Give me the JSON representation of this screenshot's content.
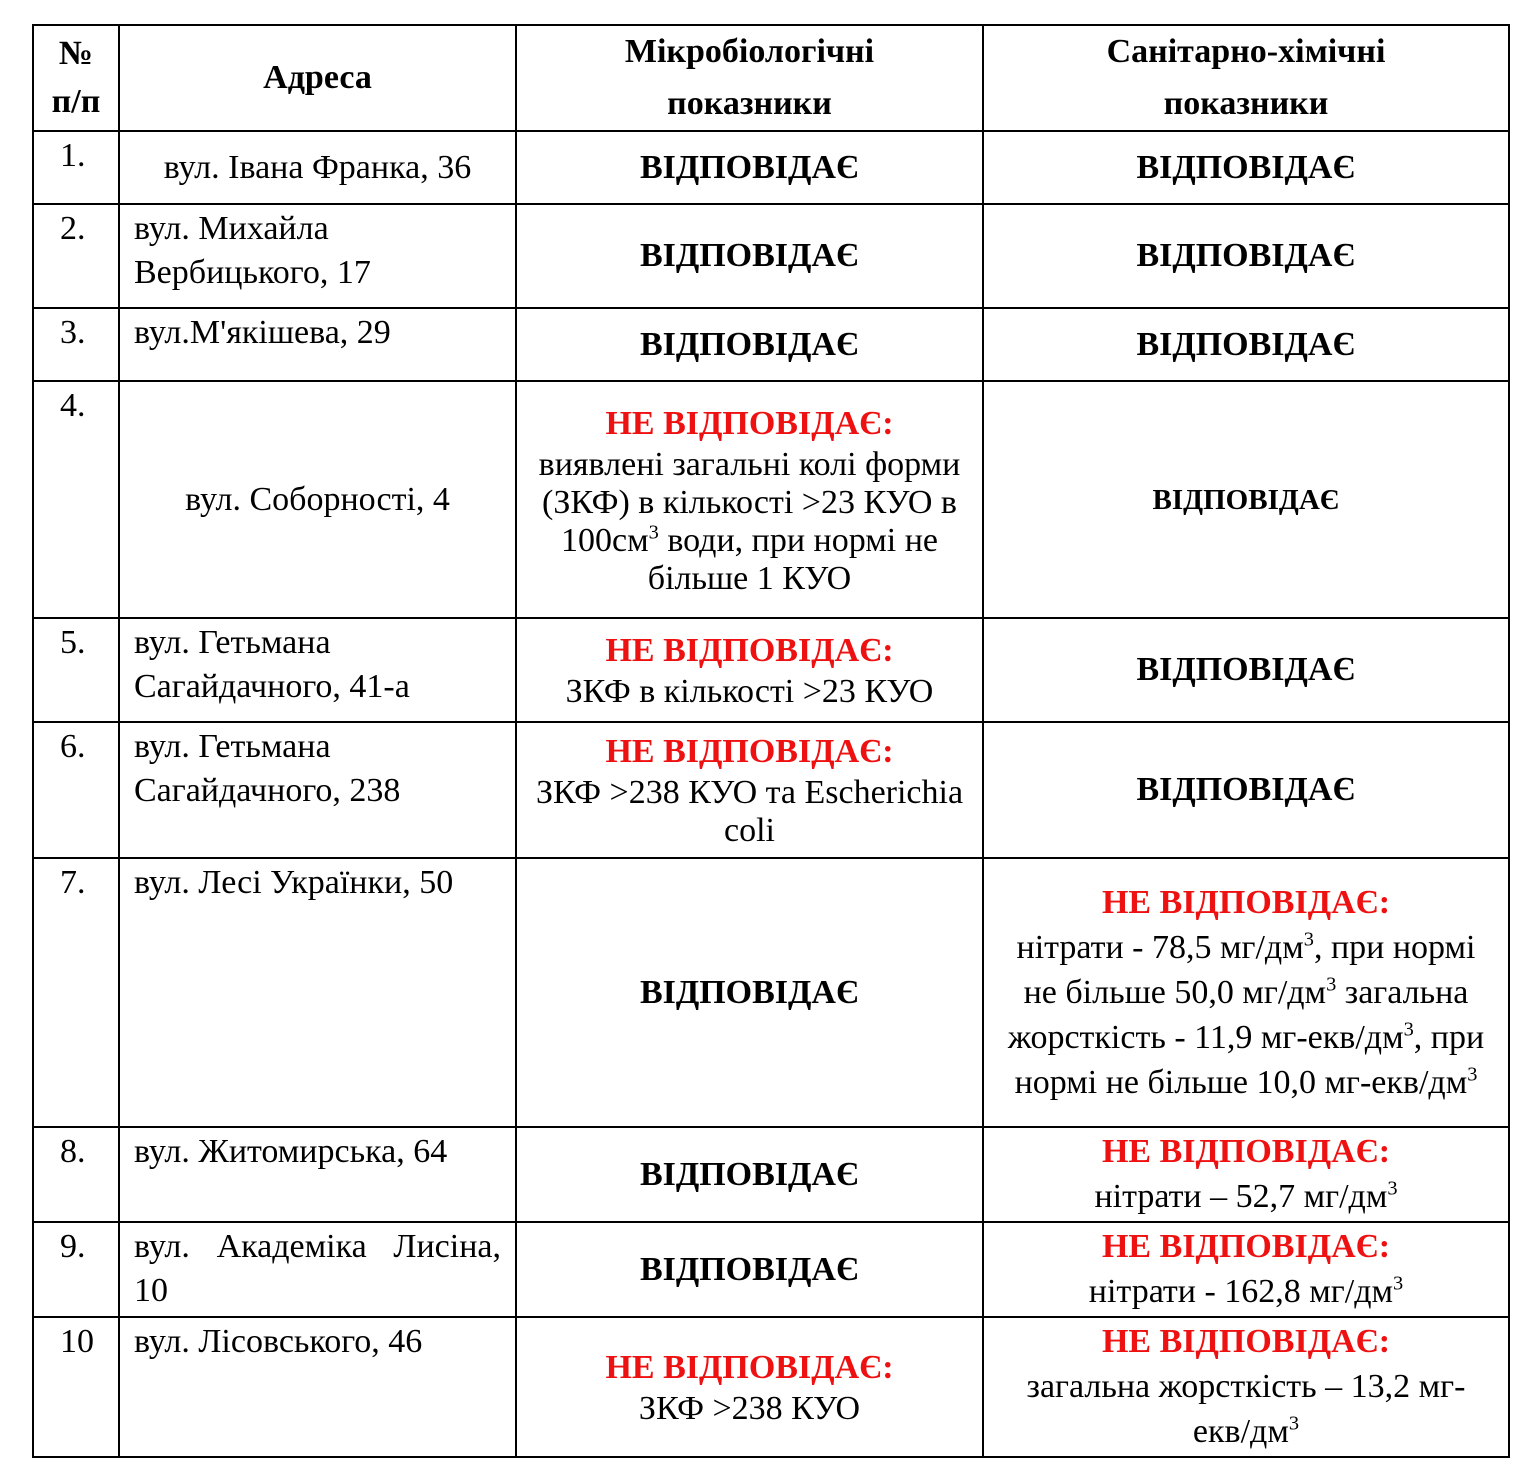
{
  "table": {
    "headers": [
      "№\nп/п",
      "Адреса",
      "Мікробіологічні показники",
      "Санітарно-хімічні показники"
    ],
    "rows": [
      {
        "num": "1.",
        "address": "вул. Івана Франка, 36",
        "micro": {
          "status": "ВІДПОВІДАЄ",
          "ok": true
        },
        "chem": {
          "status": "ВІДПОВІДАЄ",
          "ok": true
        }
      },
      {
        "num": "2.",
        "address": "вул. Михайла Вербицького, 17",
        "micro": {
          "status": "ВІДПОВІДАЄ",
          "ok": true
        },
        "chem": {
          "status": "ВІДПОВІДАЄ",
          "ok": true
        }
      },
      {
        "num": "3.",
        "address": "вул.М'якішева, 29",
        "micro": {
          "status": "ВІДПОВІДАЄ",
          "ok": true
        },
        "chem": {
          "status": "ВІДПОВІДАЄ",
          "ok": true
        }
      },
      {
        "num": "4.",
        "address": "вул. Соборності, 4",
        "micro": {
          "status": "НЕ ВІДПОВІДАЄ:",
          "ok": false,
          "detail": [
            {
              "t": "виявлені загальні колі форми (ЗКФ) в кількості >23 КУО в 100см"
            },
            {
              "sup": "3"
            },
            {
              "t": " води, при нормі не  більше 1 КУО"
            }
          ]
        },
        "chem": {
          "status": "ВІДПОВІДАЄ",
          "ok": true
        }
      },
      {
        "num": "5.",
        "address": "вул. Гетьмана Сагайдачного, 41-а",
        "micro": {
          "status": "НЕ ВІДПОВІДАЄ:",
          "ok": false,
          "detail": [
            {
              "t": "ЗКФ в кількості >23 КУО"
            }
          ]
        },
        "chem": {
          "status": "ВІДПОВІДАЄ",
          "ok": true
        }
      },
      {
        "num": "6.",
        "address": "вул. Гетьмана Сагайдачного, 238",
        "micro": {
          "status": "НЕ ВІДПОВІДАЄ:",
          "ok": false,
          "detail": [
            {
              "t": "ЗКФ >238 КУО та Escherichia coli"
            }
          ]
        },
        "chem": {
          "status": "ВІДПОВІДАЄ",
          "ok": true
        }
      },
      {
        "num": "7.",
        "address": "вул. Лесі Українки, 50",
        "micro": {
          "status": "ВІДПОВІДАЄ",
          "ok": true
        },
        "chem": {
          "status": "НЕ ВІДПОВІДАЄ:",
          "ok": false,
          "detail": [
            {
              "t": "нітрати - 78,5 мг/дм"
            },
            {
              "sup": "3"
            },
            {
              "t": ", при нормі не більше 50,0 мг/дм"
            },
            {
              "sup": "3"
            },
            {
              "t": " загальна жорсткість -  11,9 мг-екв/дм"
            },
            {
              "sup": "3"
            },
            {
              "t": ", при нормі не більше 10,0 мг-екв/дм"
            },
            {
              "sup": "3"
            }
          ]
        }
      },
      {
        "num": "8.",
        "address": "вул. Житомирська, 64",
        "micro": {
          "status": "ВІДПОВІДАЄ",
          "ok": true
        },
        "chem": {
          "status": "НЕ ВІДПОВІДАЄ:",
          "ok": false,
          "detail": [
            {
              "t": "нітрати – 52,7 мг/дм"
            },
            {
              "sup": "3"
            }
          ]
        }
      },
      {
        "num": "9.",
        "address": "вул. Академіка Лисіна, 10",
        "micro": {
          "status": "ВІДПОВІДАЄ",
          "ok": true
        },
        "chem": {
          "status": "НЕ ВІДПОВІДАЄ:",
          "ok": false,
          "detail": [
            {
              "t": "нітрати - 162,8 мг/дм"
            },
            {
              "sup": "3"
            }
          ]
        }
      },
      {
        "num": "10",
        "address": "вул. Лісовського, 46",
        "micro": {
          "status": "НЕ ВІДПОВІДАЄ:",
          "ok": false,
          "detail": [
            {
              "t": "ЗКФ >238 КУО"
            }
          ]
        },
        "chem": {
          "status": "НЕ ВІДПОВІДАЄ:",
          "ok": false,
          "detail": [
            {
              "t": "загальна жорсткість –   13,2 мг-екв/дм"
            },
            {
              "sup": "3"
            }
          ]
        }
      }
    ]
  },
  "colors": {
    "non_compliant": "#ee1111",
    "text": "#000000"
  }
}
